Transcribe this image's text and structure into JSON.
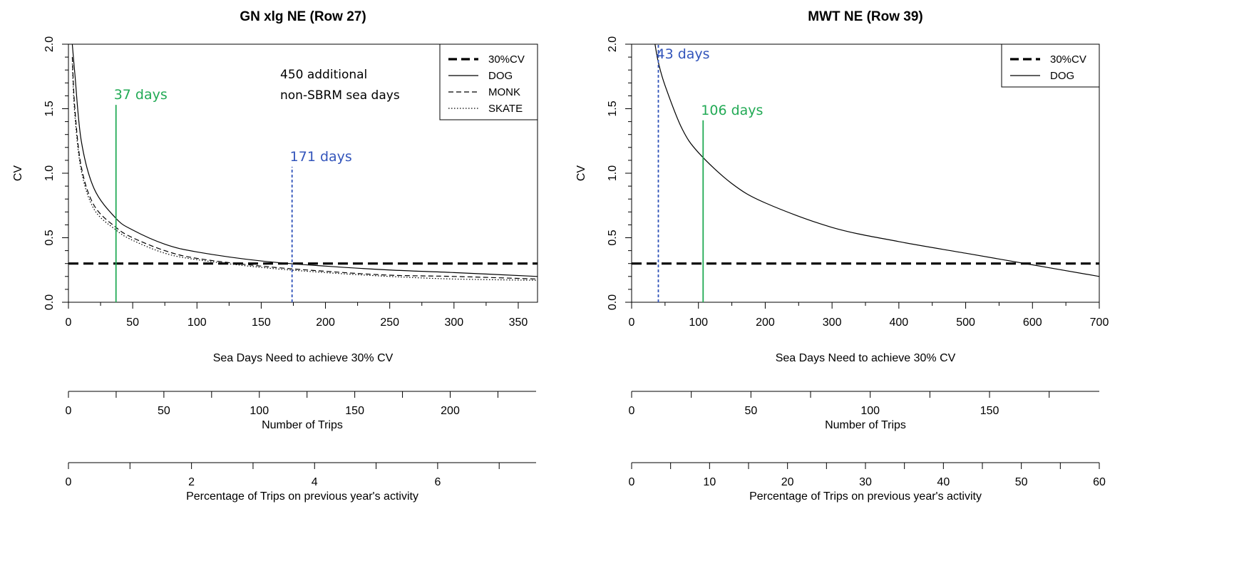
{
  "chart_data": [
    {
      "type": "line",
      "title": "GN xlg NE (Row 27)",
      "xlabel": "Sea Days Need to achieve 30% CV",
      "ylabel": "CV",
      "xlim": [
        0,
        365
      ],
      "ylim": [
        0,
        2
      ],
      "x_ticks": [
        0,
        50,
        100,
        150,
        200,
        250,
        300,
        350
      ],
      "y_ticks": [
        "0.0",
        "0.5",
        "1.0",
        "1.5",
        "2.0"
      ],
      "series": [
        {
          "name": "DOG",
          "style": "solid",
          "x": [
            3,
            5,
            10,
            20,
            37,
            50,
            75,
            100,
            150,
            200,
            250,
            300,
            365
          ],
          "y": [
            2.0,
            1.77,
            1.25,
            0.88,
            0.65,
            0.56,
            0.45,
            0.39,
            0.32,
            0.28,
            0.25,
            0.23,
            0.2
          ]
        },
        {
          "name": "MONK",
          "style": "dashed",
          "x": [
            3,
            5,
            10,
            20,
            37,
            50,
            75,
            100,
            150,
            200,
            250,
            300,
            365
          ],
          "y": [
            1.9,
            1.5,
            1.05,
            0.75,
            0.58,
            0.5,
            0.4,
            0.34,
            0.28,
            0.24,
            0.21,
            0.2,
            0.18
          ]
        },
        {
          "name": "SKATE",
          "style": "dotted",
          "x": [
            3,
            5,
            10,
            20,
            37,
            50,
            75,
            100,
            150,
            200,
            250,
            300,
            365
          ],
          "y": [
            1.85,
            1.45,
            1.02,
            0.72,
            0.56,
            0.48,
            0.38,
            0.33,
            0.27,
            0.23,
            0.2,
            0.18,
            0.17
          ]
        }
      ],
      "threshold": {
        "name": "30%CV",
        "y": 0.3
      },
      "markers": [
        {
          "x": 37,
          "top": 1.53,
          "label": "37 days",
          "color": "#22aa55",
          "style": "solid"
        },
        {
          "x": 174,
          "top": 1.05,
          "label": "171 days",
          "color": "#3355bb",
          "style": "dashed"
        }
      ],
      "note": [
        "450 additional",
        "non-SBRM sea days"
      ],
      "legend": [
        "30%CV",
        "DOG",
        "MONK",
        "SKATE"
      ],
      "secondary_axes": [
        {
          "label": "Number of Trips",
          "tick_labels": [
            "0",
            "50",
            "100",
            "150",
            "200"
          ],
          "tick_values": [
            0,
            50,
            100,
            150,
            200
          ],
          "major_step": 50,
          "minor_step": 25,
          "max": 245
        },
        {
          "label": "Percentage of Trips on previous year's activity",
          "tick_labels": [
            "0",
            "2",
            "4",
            "6"
          ],
          "tick_values": [
            0,
            2,
            4,
            6
          ],
          "major_step": 2,
          "minor_step": 1,
          "max": 7.6
        }
      ]
    },
    {
      "type": "line",
      "title": "MWT NE (Row 39)",
      "xlabel": "Sea Days Need to achieve 30% CV",
      "ylabel": "CV",
      "xlim": [
        0,
        700
      ],
      "ylim": [
        0,
        2
      ],
      "x_ticks": [
        0,
        100,
        200,
        300,
        400,
        500,
        600,
        700
      ],
      "y_ticks": [
        "0.0",
        "0.5",
        "1.0",
        "1.5",
        "2.0"
      ],
      "series": [
        {
          "name": "DOG",
          "style": "solid",
          "x": [
            35,
            40,
            50,
            75,
            100,
            150,
            200,
            300,
            400,
            500,
            600,
            700
          ],
          "y": [
            2.0,
            1.86,
            1.68,
            1.35,
            1.16,
            0.92,
            0.77,
            0.58,
            0.47,
            0.38,
            0.29,
            0.2
          ]
        }
      ],
      "threshold": {
        "name": "30%CV",
        "y": 0.3
      },
      "markers": [
        {
          "x": 40,
          "top": 2.0,
          "label": "43 days",
          "color": "#3355bb",
          "style": "dashed"
        },
        {
          "x": 107,
          "top": 1.41,
          "label": "106 days",
          "color": "#22aa55",
          "style": "solid"
        }
      ],
      "note": [],
      "legend": [
        "30%CV",
        "DOG"
      ],
      "secondary_axes": [
        {
          "label": "Number of Trips",
          "tick_labels": [
            "0",
            "50",
            "100",
            "150"
          ],
          "tick_values": [
            0,
            50,
            100,
            150
          ],
          "major_step": 50,
          "minor_step": 25,
          "max": 196
        },
        {
          "label": "Percentage of Trips on previous year's activity",
          "tick_labels": [
            "0",
            "10",
            "20",
            "30",
            "40",
            "50",
            "60"
          ],
          "tick_values": [
            0,
            10,
            20,
            30,
            40,
            50,
            60
          ],
          "major_step": 10,
          "minor_step": 5,
          "max": 60
        }
      ]
    }
  ]
}
